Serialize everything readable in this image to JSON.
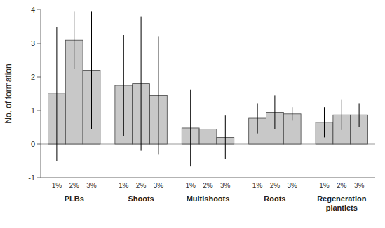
{
  "chart_data": {
    "type": "bar",
    "categories": [
      "PLBs",
      "Shoots",
      "Multishoots",
      "Roots",
      "Regeneration\nplantlets"
    ],
    "series": [
      {
        "name": "1%",
        "values": [
          1.5,
          1.75,
          0.48,
          0.77,
          0.65
        ],
        "errors": [
          2.0,
          1.5,
          1.15,
          0.45,
          0.45
        ]
      },
      {
        "name": "2%",
        "values": [
          3.1,
          1.8,
          0.45,
          0.95,
          0.87
        ],
        "errors": [
          0.85,
          2.0,
          1.2,
          0.5,
          0.45
        ]
      },
      {
        "name": "3%",
        "values": [
          2.2,
          1.45,
          0.2,
          0.9,
          0.87
        ],
        "errors": [
          1.75,
          1.75,
          0.65,
          0.2,
          0.35
        ]
      }
    ],
    "color": "#c8c8c8",
    "ylabel": "No. of formation",
    "ylim": [
      -1,
      4
    ],
    "yticks": [
      -1,
      0,
      1,
      2,
      3,
      4
    ]
  }
}
